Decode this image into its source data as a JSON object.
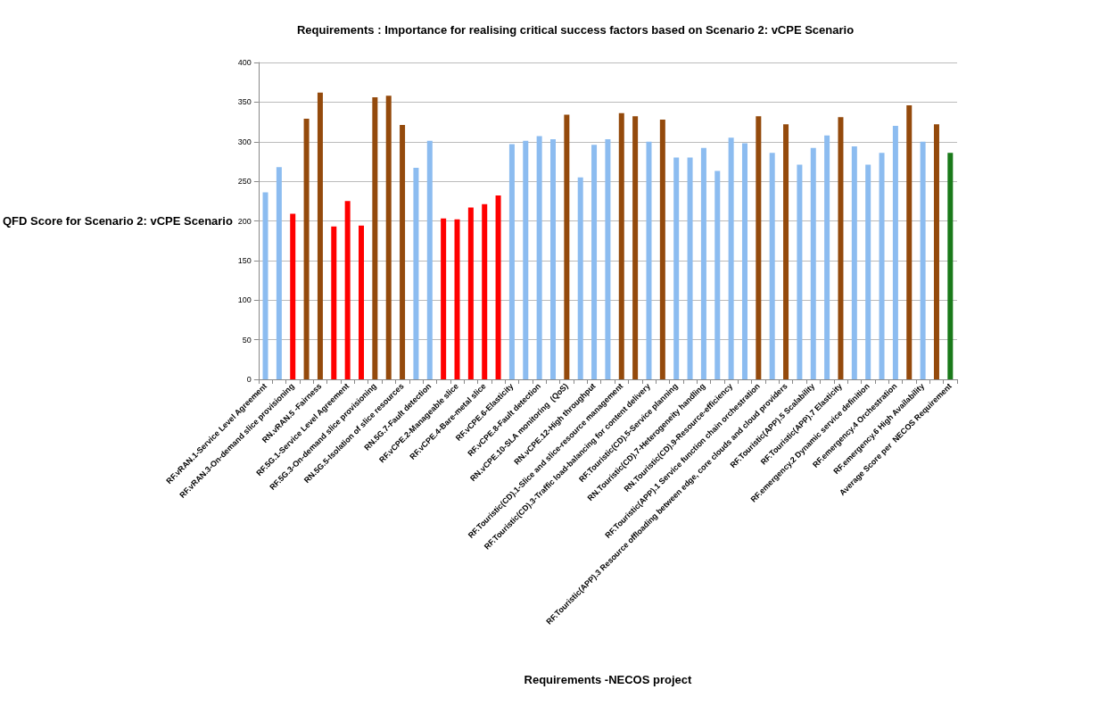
{
  "chart_data": {
    "type": "bar",
    "title": "Requirements : Importance for realising critical success factors based on Scenario 2: vCPE Scenario",
    "xlabel": "Requirements -NECOS project",
    "ylabel": "QFD Score for Scenario 2: vCPE Scenario",
    "categories": [
      "RF.vRAN.1-Service Level Agreement",
      null,
      "RF.vRAN.3-On-demand slice provisioning",
      null,
      "RN.vRAN.5 -Fairness",
      null,
      "RF.5G.1-Service Level Agreement",
      null,
      "RF.5G.3-On-demand slice provisioning",
      null,
      "RN.5G.5-Isolation of slice resources",
      null,
      "RN.5G.7-Fault detection",
      null,
      "RF.vCPE.2-Manageable slice",
      null,
      "RF.vCPE.4-Bare-metal slice",
      null,
      "RF.vCPE.6-Elasticity",
      null,
      "RF.vCPE.8-Fault detection",
      null,
      "RN.vCPE.10-SLA monitoring  (QoS)",
      null,
      "RN.vCPE.12-High throughput",
      null,
      "RF.Touristic(CD).1-Slice and slice-resource management",
      null,
      "RF.Touristic(CD).3-Traffic load-balancing for content delivery",
      null,
      "RF.Touristic(CD).5-Service planning",
      null,
      "RN.Touristic(CD).7-Heterogeneity handling",
      null,
      "RN.Touristic(CD).9-Resource-efficiency",
      null,
      "RF.Touristic(APP).1 Service function chain orchestration",
      null,
      "RF.Touristic(APP).3 Resource offloading between edge, core clouds and cloud providers",
      null,
      "RF.Touristic(APP).5 Scalability",
      null,
      "RF.Touristic(APP).7 Elasticity",
      null,
      "RF.emergency.2 Dynamic service definition",
      null,
      "RF.emergency.4 Orchestration",
      null,
      "RF.emergency.6 High Availability",
      null,
      "Average Score per  NECOS Requirement"
    ],
    "values": [
      236,
      268,
      209,
      329,
      362,
      193,
      225,
      194,
      356,
      358,
      321,
      267,
      301,
      203,
      202,
      217,
      221,
      232,
      297,
      301,
      307,
      303,
      334,
      255,
      296,
      303,
      336,
      332,
      300,
      328,
      280,
      280,
      292,
      263,
      305,
      298,
      332,
      286,
      322,
      271,
      292,
      308,
      331,
      294,
      271,
      286,
      320,
      346,
      300,
      322,
      286
    ],
    "colors": [
      "#8cbcf0",
      "#8cbcf0",
      "#ff0000",
      "#944a0c",
      "#944a0c",
      "#ff0000",
      "#ff0000",
      "#ff0000",
      "#944a0c",
      "#944a0c",
      "#944a0c",
      "#8cbcf0",
      "#8cbcf0",
      "#ff0000",
      "#ff0000",
      "#ff0000",
      "#ff0000",
      "#ff0000",
      "#8cbcf0",
      "#8cbcf0",
      "#8cbcf0",
      "#8cbcf0",
      "#944a0c",
      "#8cbcf0",
      "#8cbcf0",
      "#8cbcf0",
      "#944a0c",
      "#944a0c",
      "#8cbcf0",
      "#944a0c",
      "#8cbcf0",
      "#8cbcf0",
      "#8cbcf0",
      "#8cbcf0",
      "#8cbcf0",
      "#8cbcf0",
      "#944a0c",
      "#8cbcf0",
      "#944a0c",
      "#8cbcf0",
      "#8cbcf0",
      "#8cbcf0",
      "#944a0c",
      "#8cbcf0",
      "#8cbcf0",
      "#8cbcf0",
      "#8cbcf0",
      "#944a0c",
      "#8cbcf0",
      "#944a0c",
      "#1a7a1a"
    ],
    "ylim": [
      0,
      400
    ],
    "yticks": [
      0,
      50,
      100,
      150,
      200,
      250,
      300,
      350,
      400
    ],
    "grid": "y"
  }
}
